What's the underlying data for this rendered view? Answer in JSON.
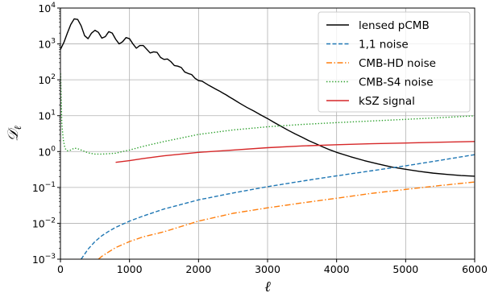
{
  "chart_data": {
    "type": "line",
    "xlabel": "ℓ",
    "ylabel": "𝒟",
    "ylabel_sub": "ℓ",
    "xlim": [
      0,
      6000
    ],
    "ylim": [
      0.001,
      10000
    ],
    "yscale": "log",
    "grid": true,
    "legend_position": "top-right",
    "x_ticks": [
      0,
      1000,
      2000,
      3000,
      4000,
      5000,
      6000
    ],
    "y_ticks": [
      {
        "value": 0.001,
        "mantissa": "10",
        "exp": "−3"
      },
      {
        "value": 0.01,
        "mantissa": "10",
        "exp": "−2"
      },
      {
        "value": 0.1,
        "mantissa": "10",
        "exp": "−1"
      },
      {
        "value": 1,
        "mantissa": "10",
        "exp": "0"
      },
      {
        "value": 10,
        "mantissa": "10",
        "exp": "1"
      },
      {
        "value": 100,
        "mantissa": "10",
        "exp": "2"
      },
      {
        "value": 1000,
        "mantissa": "10",
        "exp": "3"
      },
      {
        "value": 10000,
        "mantissa": "10",
        "exp": "4"
      }
    ],
    "series": [
      {
        "name": "lensed pCMB",
        "color": "#000000",
        "style": "solid",
        "x": [
          0,
          50,
          100,
          150,
          200,
          250,
          300,
          350,
          400,
          450,
          500,
          550,
          600,
          650,
          700,
          750,
          800,
          850,
          900,
          950,
          1000,
          1050,
          1100,
          1150,
          1200,
          1250,
          1300,
          1350,
          1400,
          1450,
          1500,
          1550,
          1600,
          1650,
          1700,
          1750,
          1800,
          1850,
          1900,
          1950,
          2000,
          2050,
          2100,
          2150,
          2200,
          2250,
          2300,
          2350,
          2400,
          2450,
          2500,
          2600,
          2700,
          2800,
          2900,
          3000,
          3100,
          3200,
          3300,
          3400,
          3500,
          3600,
          3700,
          3800,
          3900,
          4000,
          4200,
          4400,
          4600,
          4800,
          5000,
          5200,
          5400,
          5600,
          5800,
          6000
        ],
        "y": [
          700,
          1100,
          2000,
          3500,
          5000,
          4800,
          3200,
          1700,
          1400,
          2000,
          2400,
          2100,
          1450,
          1600,
          2200,
          2000,
          1350,
          1000,
          1150,
          1500,
          1400,
          1000,
          760,
          900,
          900,
          710,
          560,
          600,
          580,
          420,
          370,
          380,
          320,
          250,
          240,
          220,
          165,
          150,
          140,
          110,
          95,
          92,
          80,
          70,
          62,
          55,
          49,
          43,
          38,
          33,
          29,
          22,
          17,
          13.5,
          10.5,
          8.3,
          6.4,
          5,
          3.9,
          3.1,
          2.5,
          2,
          1.65,
          1.35,
          1.12,
          0.95,
          0.72,
          0.56,
          0.45,
          0.37,
          0.32,
          0.28,
          0.25,
          0.23,
          0.215,
          0.205
        ]
      },
      {
        "name": "1,1 noise",
        "color": "#1f77b4",
        "style": "dashed",
        "x": [
          300,
          400,
          500,
          600,
          700,
          800,
          1000,
          1200,
          1500,
          2000,
          2500,
          3000,
          3500,
          4000,
          4500,
          5000,
          5500,
          6000
        ],
        "y": [
          0.001,
          0.0019,
          0.0031,
          0.0045,
          0.006,
          0.0077,
          0.0115,
          0.016,
          0.025,
          0.045,
          0.07,
          0.105,
          0.15,
          0.21,
          0.29,
          0.4,
          0.57,
          0.82
        ]
      },
      {
        "name": "CMB-HD noise",
        "color": "#ff7f0e",
        "style": "dashdot",
        "x": [
          550,
          600,
          700,
          800,
          1000,
          1200,
          1500,
          2000,
          2500,
          3000,
          3500,
          4000,
          4500,
          5000,
          5500,
          6000
        ],
        "y": [
          0.001,
          0.0012,
          0.0016,
          0.0021,
          0.0031,
          0.0042,
          0.0058,
          0.0115,
          0.019,
          0.027,
          0.037,
          0.05,
          0.068,
          0.088,
          0.113,
          0.142
        ]
      },
      {
        "name": "CMB-S4 noise",
        "color": "#2ca02c",
        "style": "dotted",
        "x": [
          2,
          20,
          40,
          60,
          80,
          100,
          150,
          200,
          250,
          300,
          400,
          500,
          600,
          700,
          800,
          900,
          1000,
          1200,
          1500,
          2000,
          2500,
          3000,
          3500,
          4000,
          4500,
          5000,
          5500,
          6000
        ],
        "y": [
          150,
          6,
          2.2,
          1.4,
          1.1,
          1.05,
          1.1,
          1.25,
          1.2,
          1.1,
          0.92,
          0.85,
          0.85,
          0.87,
          0.9,
          1.0,
          1.1,
          1.4,
          1.9,
          3.0,
          4.0,
          4.9,
          5.7,
          6.4,
          7.1,
          7.9,
          8.8,
          9.9
        ]
      },
      {
        "name": "kSZ signal",
        "color": "#d62728",
        "style": "solid",
        "x": [
          800,
          1000,
          1200,
          1500,
          2000,
          2500,
          3000,
          3500,
          4000,
          4500,
          5000,
          5500,
          6000
        ],
        "y": [
          0.5,
          0.56,
          0.64,
          0.76,
          0.95,
          1.1,
          1.28,
          1.43,
          1.55,
          1.65,
          1.73,
          1.82,
          1.9
        ]
      }
    ]
  }
}
